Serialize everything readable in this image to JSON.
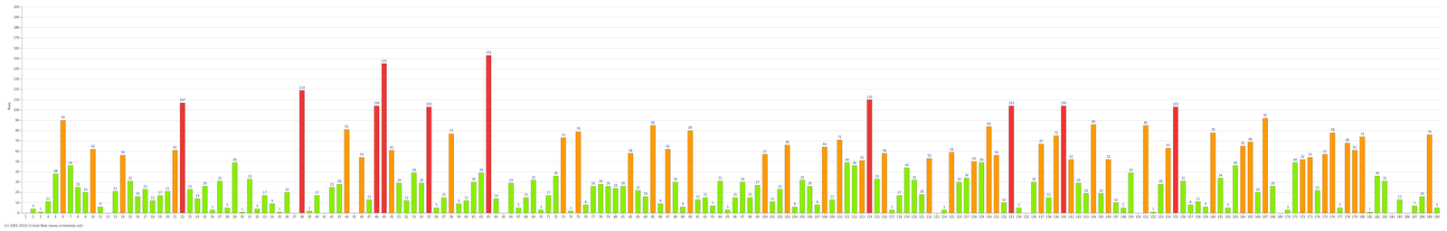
{
  "chart_data": {
    "type": "bar",
    "ylabel": "Runs",
    "annotations": [
      "(C) 2001-2015 Cricket Web (www.cricketweb.net)"
    ],
    "categories": [
      "1",
      "2",
      "3",
      "4",
      "5",
      "6",
      "7",
      "8",
      "9",
      "10",
      "11",
      "12",
      "13",
      "14",
      "15",
      "16",
      "17",
      "18",
      "19",
      "20",
      "21",
      "22",
      "23",
      "24",
      "25",
      "26",
      "27",
      "28",
      "29",
      "30",
      "31",
      "32",
      "33",
      "34",
      "35",
      "36",
      "37",
      "38",
      "39",
      "40",
      "41",
      "42",
      "43",
      "44",
      "45",
      "46",
      "47",
      "48",
      "49",
      "50",
      "51",
      "52",
      "53",
      "54",
      "55",
      "56",
      "57",
      "58",
      "59",
      "60",
      "61",
      "62",
      "63",
      "64",
      "65",
      "66",
      "67",
      "68",
      "69",
      "70",
      "71",
      "72",
      "73",
      "74",
      "75",
      "76",
      "77",
      "78",
      "79",
      "80",
      "81",
      "82",
      "83",
      "84",
      "85",
      "86",
      "87",
      "88",
      "89",
      "90",
      "91",
      "92",
      "93",
      "94",
      "95",
      "96",
      "97",
      "98",
      "99",
      "100",
      "101",
      "102",
      "103",
      "104",
      "105",
      "106",
      "107",
      "108",
      "109",
      "110",
      "111",
      "112",
      "113",
      "114",
      "115",
      "116",
      "117",
      "118",
      "119",
      "120",
      "121",
      "122",
      "123",
      "124",
      "125",
      "126",
      "127",
      "128",
      "129",
      "130",
      "131",
      "132",
      "133",
      "134",
      "135",
      "136",
      "137",
      "138",
      "139",
      "140",
      "141",
      "142",
      "143",
      "144",
      "145",
      "146",
      "147",
      "148",
      "149",
      "150",
      "151",
      "152",
      "153",
      "154",
      "155",
      "156",
      "157",
      "158",
      "159",
      "160",
      "161",
      "162",
      "163",
      "164",
      "165",
      "166",
      "167",
      "168",
      "169",
      "170",
      "171",
      "172",
      "173",
      "174",
      "175",
      "176",
      "177",
      "178",
      "179",
      "180",
      "181",
      "182",
      "183",
      "184",
      "185",
      "186",
      "187",
      "188",
      "189",
      "190"
    ],
    "values": [
      0,
      4,
      1,
      11,
      38,
      90,
      46,
      25,
      20,
      62,
      6,
      0,
      21,
      56,
      31,
      16,
      23,
      12,
      17,
      21,
      61,
      107,
      23,
      14,
      26,
      3,
      31,
      5,
      49,
      1,
      33,
      4,
      17,
      9,
      1,
      20,
      0,
      119,
      2,
      17,
      0,
      25,
      28,
      81,
      0,
      54,
      13,
      104,
      145,
      61,
      29,
      12,
      39,
      29,
      103,
      5,
      15,
      77,
      9,
      12,
      30,
      39,
      153,
      14,
      0,
      29,
      5,
      15,
      32,
      3,
      17,
      36,
      73,
      2,
      79,
      8,
      26,
      28,
      26,
      24,
      26,
      58,
      22,
      16,
      85,
      9,
      62,
      30,
      6,
      80,
      13,
      15,
      7,
      31,
      3,
      15,
      30,
      15,
      27,
      57,
      11,
      23,
      66,
      6,
      32,
      26,
      8,
      64,
      13,
      71,
      49,
      46,
      51,
      110,
      33,
      58,
      3,
      17,
      44,
      32,
      18,
      53,
      0,
      3,
      59,
      30,
      34,
      50,
      49,
      84,
      56,
      10,
      104,
      5,
      0,
      30,
      67,
      15,
      75,
      104,
      52,
      29,
      19,
      86,
      19,
      52,
      10,
      5,
      39,
      0,
      85,
      1,
      28,
      63,
      103,
      31,
      8,
      11,
      6,
      78,
      34,
      5,
      46,
      65,
      69,
      20,
      92,
      26,
      0,
      3,
      49,
      52,
      54,
      22,
      57,
      78,
      5,
      68,
      61,
      74,
      1,
      36,
      31,
      0,
      13,
      0,
      7,
      16,
      76,
      5
    ],
    "colors": [
      "#8e0",
      "#8e0",
      "#8e0",
      "#8e0",
      "#8e0",
      "#f90",
      "#8e0",
      "#8e0",
      "#8e0",
      "#f90",
      "#8e0",
      "#8e0",
      "#8e0",
      "#f90",
      "#8e0",
      "#8e0",
      "#8e0",
      "#8e0",
      "#8e0",
      "#8e0",
      "#f90",
      "#e33",
      "#8e0",
      "#8e0",
      "#8e0",
      "#8e0",
      "#8e0",
      "#8e0",
      "#8e0",
      "#8e0",
      "#8e0",
      "#8e0",
      "#8e0",
      "#8e0",
      "#8e0",
      "#8e0",
      "#8e0",
      "#e33",
      "#8e0",
      "#8e0",
      "#8e0",
      "#8e0",
      "#8e0",
      "#f90",
      "#8e0",
      "#f90",
      "#8e0",
      "#e33",
      "#e33",
      "#f90",
      "#8e0",
      "#8e0",
      "#8e0",
      "#8e0",
      "#e33",
      "#8e0",
      "#8e0",
      "#f90",
      "#8e0",
      "#8e0",
      "#8e0",
      "#8e0",
      "#e33",
      "#8e0",
      "#8e0",
      "#8e0",
      "#8e0",
      "#8e0",
      "#8e0",
      "#8e0",
      "#8e0",
      "#8e0",
      "#f90",
      "#8e0",
      "#f90",
      "#8e0",
      "#8e0",
      "#8e0",
      "#8e0",
      "#8e0",
      "#8e0",
      "#f90",
      "#8e0",
      "#8e0",
      "#f90",
      "#8e0",
      "#f90",
      "#8e0",
      "#8e0",
      "#f90",
      "#8e0",
      "#8e0",
      "#8e0",
      "#8e0",
      "#8e0",
      "#8e0",
      "#8e0",
      "#8e0",
      "#8e0",
      "#f90",
      "#8e0",
      "#8e0",
      "#f90",
      "#8e0",
      "#8e0",
      "#8e0",
      "#8e0",
      "#f90",
      "#8e0",
      "#f90",
      "#8e0",
      "#8e0",
      "#f90",
      "#e33",
      "#8e0",
      "#f90",
      "#8e0",
      "#8e0",
      "#8e0",
      "#8e0",
      "#8e0",
      "#f90",
      "#8e0",
      "#8e0",
      "#f90",
      "#8e0",
      "#8e0",
      "#f90",
      "#8e0",
      "#f90",
      "#f90",
      "#8e0",
      "#e33",
      "#8e0",
      "#8e0",
      "#8e0",
      "#f90",
      "#8e0",
      "#f90",
      "#e33",
      "#f90",
      "#8e0",
      "#8e0",
      "#f90",
      "#8e0",
      "#f90",
      "#8e0",
      "#8e0",
      "#8e0",
      "#8e0",
      "#f90",
      "#8e0",
      "#8e0",
      "#f90",
      "#e33",
      "#8e0",
      "#8e0",
      "#8e0",
      "#8e0",
      "#f90",
      "#8e0",
      "#8e0",
      "#8e0",
      "#f90",
      "#f90",
      "#8e0",
      "#f90",
      "#8e0",
      "#8e0",
      "#8e0",
      "#8e0",
      "#f90",
      "#f90",
      "#8e0",
      "#f90",
      "#f90",
      "#8e0",
      "#f90",
      "#f90",
      "#f90",
      "#8e0",
      "#8e0",
      "#8e0",
      "#8e0",
      "#8e0",
      "#8e0",
      "#8e0",
      "#8e0",
      "#f90",
      "#8e0"
    ],
    "ylim": [
      0,
      200
    ],
    "yticks": [
      0,
      10,
      20,
      30,
      40,
      50,
      60,
      70,
      80,
      90,
      100,
      110,
      120,
      130,
      140,
      150,
      160,
      170,
      180,
      190,
      200
    ],
    "grid": true,
    "data_labels": true
  }
}
